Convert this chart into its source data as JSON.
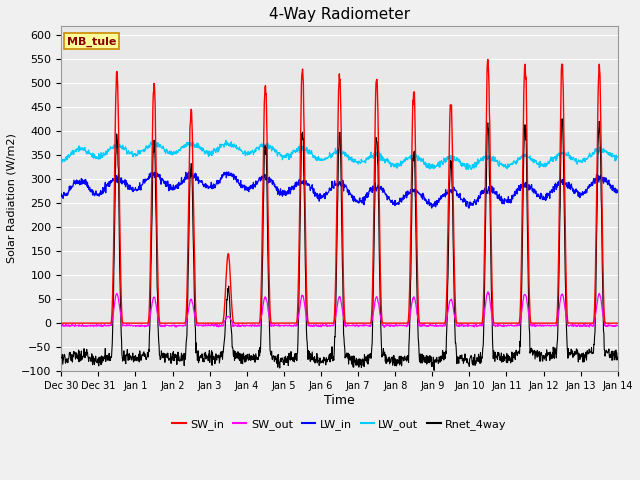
{
  "title": "4-Way Radiometer",
  "xlabel": "Time",
  "ylabel": "Solar Radiation (W/m2)",
  "ylim": [
    -100,
    620
  ],
  "yticks": [
    -100,
    -50,
    0,
    50,
    100,
    150,
    200,
    250,
    300,
    350,
    400,
    450,
    500,
    550,
    600
  ],
  "x_tick_labels": [
    "Dec 30",
    "Dec 31",
    "Jan 1",
    "Jan 2",
    "Jan 3",
    "Jan 4",
    "Jan 5",
    "Jan 6",
    "Jan 7",
    "Jan 8",
    "Jan 9",
    "Jan 10",
    "Jan 11",
    "Jan 12",
    "Jan 13",
    "Jan 14"
  ],
  "station_label": "MB_tule",
  "sw_in_color": "#ff0000",
  "sw_out_color": "#ff00ff",
  "lw_in_color": "#0000ff",
  "lw_out_color": "#00ccff",
  "rnet_color": "#000000",
  "fig_bg": "#f0f0f0",
  "plot_bg": "#e8e8e8",
  "grid_color": "#ffffff",
  "sw_in_peaks": [
    0,
    525,
    500,
    450,
    145,
    500,
    530,
    520,
    520,
    490,
    460,
    550,
    540,
    540,
    540,
    0
  ],
  "sw_out_peaks": [
    0,
    62,
    55,
    50,
    14,
    55,
    58,
    55,
    55,
    55,
    50,
    65,
    62,
    62,
    62,
    0
  ],
  "num_days": 15,
  "pts_per_day": 96
}
